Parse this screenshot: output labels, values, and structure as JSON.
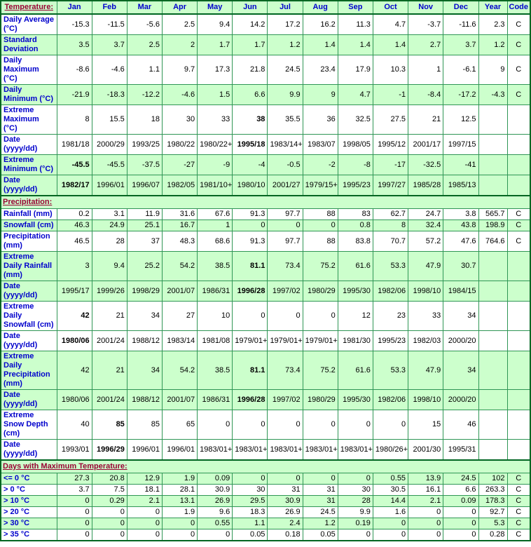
{
  "colors": {
    "row_green": "#ccffcc",
    "row_white": "#ffffff",
    "grid_green": "#2f9655",
    "section_border_green": "#006622",
    "label_blue": "#0000cc",
    "section_link_maroon": "#990033"
  },
  "header": {
    "corner": "Temperature:",
    "months": [
      "Jan",
      "Feb",
      "Mar",
      "Apr",
      "May",
      "Jun",
      "Jul",
      "Aug",
      "Sep",
      "Oct",
      "Nov",
      "Dec"
    ],
    "year": "Year",
    "code": "Code"
  },
  "rows": [
    {
      "label": "Daily Average (°C)",
      "shade": "w",
      "values": [
        "-15.3",
        "-11.5",
        "-5.6",
        "2.5",
        "9.4",
        "14.2",
        "17.2",
        "16.2",
        "11.3",
        "4.7",
        "-3.7",
        "-11.6"
      ],
      "year": "2.3",
      "code": "C",
      "bold": []
    },
    {
      "label": "Standard Deviation",
      "shade": "g",
      "values": [
        "3.5",
        "3.7",
        "2.5",
        "2",
        "1.7",
        "1.7",
        "1.2",
        "1.4",
        "1.4",
        "1.4",
        "2.7",
        "3.7"
      ],
      "year": "1.2",
      "code": "C",
      "bold": []
    },
    {
      "label": "Daily Maximum (°C)",
      "shade": "w",
      "values": [
        "-8.6",
        "-4.6",
        "1.1",
        "9.7",
        "17.3",
        "21.8",
        "24.5",
        "23.4",
        "17.9",
        "10.3",
        "1",
        "-6.1"
      ],
      "year": "9",
      "code": "C",
      "bold": []
    },
    {
      "label": "Daily Minimum (°C)",
      "shade": "g",
      "values": [
        "-21.9",
        "-18.3",
        "-12.2",
        "-4.6",
        "1.5",
        "6.6",
        "9.9",
        "9",
        "4.7",
        "-1",
        "-8.4",
        "-17.2"
      ],
      "year": "-4.3",
      "code": "C",
      "bold": []
    },
    {
      "label": "Extreme Maximum (°C)",
      "shade": "w",
      "values": [
        "8",
        "15.5",
        "18",
        "30",
        "33",
        "38",
        "35.5",
        "36",
        "32.5",
        "27.5",
        "21",
        "12.5"
      ],
      "year": "",
      "code": "",
      "bold": [
        5
      ]
    },
    {
      "label": "Date (yyyy/dd)",
      "shade": "w",
      "values": [
        "1981/18",
        "2000/29",
        "1993/25",
        "1980/22",
        "1980/22+",
        "1995/18",
        "1983/14+",
        "1983/07",
        "1998/05",
        "1995/12",
        "2001/17",
        "1997/15"
      ],
      "year": "",
      "code": "",
      "bold": [
        5
      ]
    },
    {
      "label": "Extreme Minimum (°C)",
      "shade": "g",
      "values": [
        "-45.5",
        "-45.5",
        "-37.5",
        "-27",
        "-9",
        "-4",
        "-0.5",
        "-2",
        "-8",
        "-17",
        "-32.5",
        "-41"
      ],
      "year": "",
      "code": "",
      "bold": [
        0
      ]
    },
    {
      "label": "Date (yyyy/dd)",
      "shade": "g",
      "values": [
        "1982/17",
        "1996/01",
        "1996/07",
        "1982/05",
        "1981/10+",
        "1980/10",
        "2001/27",
        "1979/15+",
        "1995/23",
        "1997/27",
        "1985/28",
        "1985/13"
      ],
      "year": "",
      "code": "",
      "bold": [
        0
      ]
    },
    {
      "section": "Precipitation:"
    },
    {
      "label": "Rainfall (mm)",
      "shade": "w",
      "values": [
        "0.2",
        "3.1",
        "11.9",
        "31.6",
        "67.6",
        "91.3",
        "97.7",
        "88",
        "83",
        "62.7",
        "24.7",
        "3.8"
      ],
      "year": "565.7",
      "code": "C",
      "bold": []
    },
    {
      "label": "Snowfall (cm)",
      "shade": "g",
      "values": [
        "46.3",
        "24.9",
        "25.1",
        "16.7",
        "1",
        "0",
        "0",
        "0",
        "0.8",
        "8",
        "32.4",
        "43.8"
      ],
      "year": "198.9",
      "code": "C",
      "bold": []
    },
    {
      "label": "Precipitation (mm)",
      "shade": "w",
      "values": [
        "46.5",
        "28",
        "37",
        "48.3",
        "68.6",
        "91.3",
        "97.7",
        "88",
        "83.8",
        "70.7",
        "57.2",
        "47.6"
      ],
      "year": "764.6",
      "code": "C",
      "bold": []
    },
    {
      "label": "Extreme Daily Rainfall (mm)",
      "shade": "g",
      "values": [
        "3",
        "9.4",
        "25.2",
        "54.2",
        "38.5",
        "81.1",
        "73.4",
        "75.2",
        "61.6",
        "53.3",
        "47.9",
        "30.7"
      ],
      "year": "",
      "code": "",
      "bold": [
        5
      ]
    },
    {
      "label": "Date (yyyy/dd)",
      "shade": "g",
      "values": [
        "1995/17",
        "1999/26",
        "1998/29",
        "2001/07",
        "1986/31",
        "1996/28",
        "1997/02",
        "1980/29",
        "1995/30",
        "1982/06",
        "1998/10",
        "1984/15"
      ],
      "year": "",
      "code": "",
      "bold": [
        5
      ]
    },
    {
      "label": "Extreme Daily Snowfall (cm)",
      "shade": "w",
      "values": [
        "42",
        "21",
        "34",
        "27",
        "10",
        "0",
        "0",
        "0",
        "12",
        "23",
        "33",
        "34"
      ],
      "year": "",
      "code": "",
      "bold": [
        0
      ]
    },
    {
      "label": "Date (yyyy/dd)",
      "shade": "w",
      "values": [
        "1980/06",
        "2001/24",
        "1988/12",
        "1983/14",
        "1981/08",
        "1979/01+",
        "1979/01+",
        "1979/01+",
        "1981/30",
        "1995/23",
        "1982/03",
        "2000/20"
      ],
      "year": "",
      "code": "",
      "bold": [
        0
      ]
    },
    {
      "label": "Extreme Daily Precipitation (mm)",
      "shade": "g",
      "values": [
        "42",
        "21",
        "34",
        "54.2",
        "38.5",
        "81.1",
        "73.4",
        "75.2",
        "61.6",
        "53.3",
        "47.9",
        "34"
      ],
      "year": "",
      "code": "",
      "bold": [
        5
      ]
    },
    {
      "label": "Date (yyyy/dd)",
      "shade": "g",
      "values": [
        "1980/06",
        "2001/24",
        "1988/12",
        "2001/07",
        "1986/31",
        "1996/28",
        "1997/02",
        "1980/29",
        "1995/30",
        "1982/06",
        "1998/10",
        "2000/20"
      ],
      "year": "",
      "code": "",
      "bold": [
        5
      ]
    },
    {
      "label": "Extreme Snow Depth (cm)",
      "shade": "w",
      "values": [
        "40",
        "85",
        "85",
        "65",
        "0",
        "0",
        "0",
        "0",
        "0",
        "0",
        "15",
        "46"
      ],
      "year": "",
      "code": "",
      "bold": [
        1
      ]
    },
    {
      "label": "Date (yyyy/dd)",
      "shade": "w",
      "values": [
        "1993/01",
        "1996/29",
        "1996/01",
        "1996/01",
        "1983/01+",
        "1983/01+",
        "1983/01+",
        "1983/01+",
        "1983/01+",
        "1980/26+",
        "2001/30",
        "1995/31"
      ],
      "year": "",
      "code": "",
      "bold": [
        1
      ]
    },
    {
      "section": "Days with Maximum Temperature:"
    },
    {
      "label": "<= 0 °C",
      "shade": "g",
      "values": [
        "27.3",
        "20.8",
        "12.9",
        "1.9",
        "0.09",
        "0",
        "0",
        "0",
        "0",
        "0.55",
        "13.9",
        "24.5"
      ],
      "year": "102",
      "code": "C",
      "bold": []
    },
    {
      "label": "> 0 °C",
      "shade": "w",
      "values": [
        "3.7",
        "7.5",
        "18.1",
        "28.1",
        "30.9",
        "30",
        "31",
        "31",
        "30",
        "30.5",
        "16.1",
        "6.6"
      ],
      "year": "263.3",
      "code": "C",
      "bold": []
    },
    {
      "label": "> 10 °C",
      "shade": "g",
      "values": [
        "0",
        "0.29",
        "2.1",
        "13.1",
        "26.9",
        "29.5",
        "30.9",
        "31",
        "28",
        "14.4",
        "2.1",
        "0.09"
      ],
      "year": "178.3",
      "code": "C",
      "bold": []
    },
    {
      "label": "> 20 °C",
      "shade": "w",
      "values": [
        "0",
        "0",
        "0",
        "1.9",
        "9.6",
        "18.3",
        "26.9",
        "24.5",
        "9.9",
        "1.6",
        "0",
        "0"
      ],
      "year": "92.7",
      "code": "C",
      "bold": []
    },
    {
      "label": "> 30 °C",
      "shade": "g",
      "values": [
        "0",
        "0",
        "0",
        "0",
        "0.55",
        "1.1",
        "2.4",
        "1.2",
        "0.19",
        "0",
        "0",
        "0"
      ],
      "year": "5.3",
      "code": "C",
      "bold": []
    },
    {
      "label": "> 35 °C",
      "shade": "w",
      "values": [
        "0",
        "0",
        "0",
        "0",
        "0",
        "0.05",
        "0.18",
        "0.05",
        "0",
        "0",
        "0",
        "0"
      ],
      "year": "0.28",
      "code": "C",
      "bold": []
    }
  ]
}
